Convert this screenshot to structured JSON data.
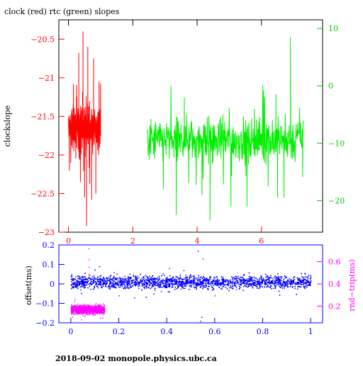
{
  "title": "clock (red) rtc (green) slopes",
  "footer": "2018-09-02 monopole.physics.ubc.ca",
  "colors": {
    "clock": "#ff0000",
    "rtc": "#00ee00",
    "offset": "#0000ff",
    "roundtrip": "#ff00ff",
    "axis_black": "#000000",
    "axis_red": "#ff0000",
    "axis_green": "#00cc00",
    "axis_blue": "#0000ff",
    "axis_magenta": "#ff00ff"
  },
  "chart_data": [
    {
      "type": "line",
      "ylabel": "clockslope",
      "xlim": [
        -0.3,
        7.9
      ],
      "ylim_left": [
        -23.0,
        -20.25
      ],
      "ylim_right": [
        -25.5,
        11.5
      ],
      "x_ticks": [
        0,
        2,
        4,
        6
      ],
      "x_tick_labels": [
        "0",
        "2",
        "4",
        "6"
      ],
      "y_left_ticks": [
        -23,
        -22.5,
        -22,
        -21.5,
        -21,
        -20.5
      ],
      "y_left_tick_labels": [
        "−23",
        "−22.5",
        "−22",
        "−21.5",
        "−21",
        "−20.5"
      ],
      "y_right_ticks": [
        -20,
        -10,
        0,
        10
      ],
      "y_right_tick_labels": [
        "−20",
        "−10",
        "0",
        "10"
      ],
      "series": [
        {
          "axis": "left",
          "x_range": [
            0.0,
            1.0
          ],
          "baseline": -21.65,
          "spread": 0.25,
          "spikes": [
            [
              0.32,
              -20.68
            ],
            [
              0.37,
              -22.35
            ],
            [
              0.45,
              -20.4
            ],
            [
              0.5,
              -22.55
            ],
            [
              0.56,
              -22.92
            ],
            [
              0.6,
              -20.6
            ],
            [
              0.72,
              -22.58
            ],
            [
              0.78,
              -20.75
            ],
            [
              0.85,
              -22.5
            ],
            [
              0.95,
              -21.05
            ]
          ]
        },
        {
          "axis": "right",
          "x_range": [
            2.45,
            7.3
          ],
          "baseline": -9.5,
          "spread": 3.5,
          "spikes": [
            [
              3.35,
              -22.5
            ],
            [
              4.4,
              -23.5
            ],
            [
              4.8,
              -5.0
            ],
            [
              5.55,
              -21.0
            ],
            [
              6.5,
              -19.5
            ],
            [
              6.7,
              -19.5
            ],
            [
              6.9,
              8.5
            ],
            [
              6.45,
              -1.5
            ],
            [
              5.05,
              -21.0
            ],
            [
              3.6,
              -2.0
            ],
            [
              4.15,
              -19.0
            ],
            [
              2.95,
              -18.0
            ],
            [
              6.1,
              -2.0
            ]
          ]
        }
      ]
    },
    {
      "type": "scatter",
      "ylabel": "offset(ms)",
      "y2label": "rnd−trip(ms)",
      "xlim": [
        -0.05,
        1.05
      ],
      "ylim_left": [
        -0.2,
        0.2
      ],
      "ylim_right": [
        0.05,
        0.75
      ],
      "x_ticks": [
        0,
        0.2,
        0.4,
        0.6,
        0.8,
        1
      ],
      "x_tick_labels": [
        "0",
        "0.2",
        "0.4",
        "0.6",
        "0.8",
        "1"
      ],
      "y_left_ticks": [
        -0.2,
        -0.1,
        0,
        0.1,
        0.2
      ],
      "y_left_tick_labels": [
        "−0.2",
        "−0.1",
        "0",
        "0.1",
        "0.2"
      ],
      "y_right_ticks": [
        0.2,
        0.4,
        0.6
      ],
      "y_right_tick_labels": [
        "0.2",
        "0.4",
        "0.6"
      ],
      "series": [
        {
          "axis": "left",
          "x_range": [
            0.0,
            1.0
          ],
          "baseline": 0.01,
          "spread": 0.03,
          "outliers": [
            [
              0.53,
              0.17
            ],
            [
              0.54,
              -0.19
            ],
            [
              0.545,
              -0.17
            ],
            [
              0.55,
              0.13
            ],
            [
              0.265,
              -0.07
            ],
            [
              0.6,
              -0.06
            ],
            [
              0.47,
              0.07
            ],
            [
              0.2,
              -0.06
            ],
            [
              0.41,
              0.08
            ],
            [
              0.18,
              0.06
            ]
          ]
        },
        {
          "axis": "right",
          "x_range": [
            0.0,
            0.14
          ],
          "baseline": 0.17,
          "spread": 0.035,
          "outliers": [
            [
              0.073,
              0.72
            ],
            [
              0.075,
              0.62
            ],
            [
              0.076,
              0.55
            ],
            [
              0.074,
              0.49
            ]
          ]
        }
      ]
    }
  ]
}
